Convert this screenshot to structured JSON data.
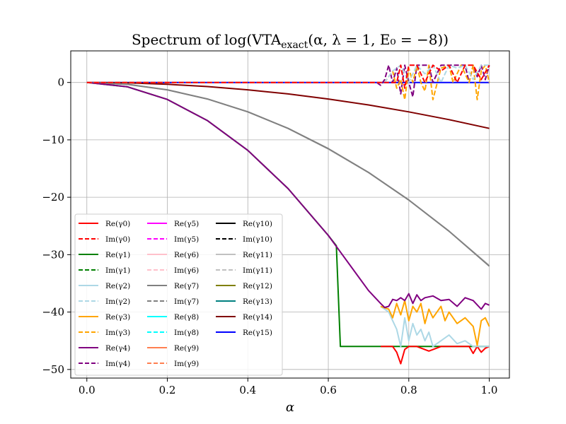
{
  "chart_data": {
    "type": "line",
    "title": "Spectrum of log(VTA_exact(α, λ = 1, E₀ = −8))",
    "title_parts": {
      "pre": "Spectrum of log(VTA",
      "sub": "exact",
      "post": "(α, λ = 1, E₀ = −8))"
    },
    "xlabel": "α",
    "ylabel": "",
    "xlim": [
      -0.04,
      1.05
    ],
    "ylim": [
      -51.5,
      5.5
    ],
    "xticks": [
      0.0,
      0.2,
      0.4,
      0.6,
      0.8,
      1.0
    ],
    "xtick_labels": [
      "0.0",
      "0.2",
      "0.4",
      "0.6",
      "0.8",
      "1.0"
    ],
    "yticks": [
      0,
      -10,
      -20,
      -30,
      -40,
      -50
    ],
    "ytick_labels": [
      "0",
      "−10",
      "−20",
      "−30",
      "−40",
      "−50"
    ],
    "grid": true,
    "legend_position": "lower-left",
    "legend": [
      {
        "label": "Re(γ0)",
        "color": "#ff0000",
        "dashed": false
      },
      {
        "label": "Im(γ0)",
        "color": "#ff0000",
        "dashed": true
      },
      {
        "label": "Re(γ1)",
        "color": "#008000",
        "dashed": false
      },
      {
        "label": "Im(γ1)",
        "color": "#008000",
        "dashed": true
      },
      {
        "label": "Re(γ2)",
        "color": "#add8e6",
        "dashed": false
      },
      {
        "label": "Im(γ2)",
        "color": "#add8e6",
        "dashed": true
      },
      {
        "label": "Re(γ3)",
        "color": "#ffa500",
        "dashed": false
      },
      {
        "label": "Im(γ3)",
        "color": "#ffa500",
        "dashed": true
      },
      {
        "label": "Re(γ4)",
        "color": "#800080",
        "dashed": false
      },
      {
        "label": "Im(γ4)",
        "color": "#800080",
        "dashed": true
      },
      {
        "label": "Re(γ5)",
        "color": "#ff00ff",
        "dashed": false
      },
      {
        "label": "Im(γ5)",
        "color": "#ff00ff",
        "dashed": true
      },
      {
        "label": "Re(γ6)",
        "color": "#ffc0cb",
        "dashed": false
      },
      {
        "label": "Im(γ6)",
        "color": "#ffc0cb",
        "dashed": true
      },
      {
        "label": "Re(γ7)",
        "color": "#808080",
        "dashed": false
      },
      {
        "label": "Im(γ7)",
        "color": "#808080",
        "dashed": true
      },
      {
        "label": "Re(γ8)",
        "color": "#00ffff",
        "dashed": false
      },
      {
        "label": "Im(γ8)",
        "color": "#00ffff",
        "dashed": true
      },
      {
        "label": "Re(γ9)",
        "color": "#ff7f50",
        "dashed": false
      },
      {
        "label": "Im(γ9)",
        "color": "#ff7f50",
        "dashed": true
      },
      {
        "label": "Re(γ10)",
        "color": "#000000",
        "dashed": false
      },
      {
        "label": "Im(γ10)",
        "color": "#000000",
        "dashed": true
      },
      {
        "label": "Re(γ11)",
        "color": "#c0c0c0",
        "dashed": false
      },
      {
        "label": "Im(γ11)",
        "color": "#c0c0c0",
        "dashed": true
      },
      {
        "label": "Re(γ12)",
        "color": "#808000",
        "dashed": false
      },
      {
        "label": "Re(γ13)",
        "color": "#008080",
        "dashed": false
      },
      {
        "label": "Re(γ14)",
        "color": "#800000",
        "dashed": false
      },
      {
        "label": "Re(γ15)",
        "color": "#0000ff",
        "dashed": false
      }
    ],
    "series": [
      {
        "name": "Re(γ15)",
        "color": "#0000ff",
        "dashed": false,
        "x": [
          0.0,
          0.2,
          0.4,
          0.6,
          0.8,
          1.0
        ],
        "y": [
          0,
          0,
          0,
          0,
          0,
          0
        ]
      },
      {
        "name": "Re(γ14)",
        "color": "#800000",
        "dashed": false,
        "x": [
          0.0,
          0.1,
          0.2,
          0.3,
          0.4,
          0.5,
          0.6,
          0.7,
          0.8,
          0.9,
          1.0
        ],
        "y": [
          0,
          -0.08,
          -0.32,
          -0.72,
          -1.28,
          -2.0,
          -2.88,
          -3.92,
          -5.12,
          -6.48,
          -8.0
        ]
      },
      {
        "name": "Re(γ11)",
        "color": "#c0c0c0",
        "dashed": false,
        "x": [
          0.0,
          0.1,
          0.2,
          0.3,
          0.4,
          0.5,
          0.6,
          0.7,
          0.8,
          0.9,
          1.0
        ],
        "y": [
          0,
          -0.33,
          -1.3,
          -2.9,
          -5.1,
          -8.0,
          -11.6,
          -15.7,
          -20.5,
          -25.9,
          -31.9
        ]
      },
      {
        "name": "Re(γ7)",
        "color": "#808080",
        "dashed": false,
        "x": [
          0.0,
          0.1,
          0.2,
          0.3,
          0.4,
          0.5,
          0.6,
          0.7,
          0.8,
          0.9,
          1.0
        ],
        "y": [
          0,
          -0.32,
          -1.28,
          -2.88,
          -5.12,
          -8.0,
          -11.52,
          -15.68,
          -20.48,
          -25.92,
          -32.0
        ]
      },
      {
        "name": "Re(γ1)",
        "color": "#008000",
        "dashed": false,
        "x": [
          0.0,
          0.1,
          0.2,
          0.3,
          0.4,
          0.5,
          0.6,
          0.62,
          0.63,
          0.7,
          0.8,
          0.9,
          1.0
        ],
        "y": [
          0,
          -0.74,
          -2.96,
          -6.66,
          -11.84,
          -18.5,
          -26.64,
          -28.45,
          -46.0,
          -46.0,
          -46.0,
          -46.0,
          -46.0
        ]
      },
      {
        "name": "Re(γ0)",
        "color": "#ff0000",
        "dashed": false,
        "x": [
          0.73,
          0.75,
          0.76,
          0.77,
          0.78,
          0.79,
          0.8,
          0.82,
          0.85,
          0.88,
          0.9,
          0.95,
          0.96,
          0.97,
          0.98,
          0.99,
          1.0
        ],
        "y": [
          -46.0,
          -46.0,
          -46.0,
          -47.0,
          -49.0,
          -46.5,
          -46.0,
          -46.0,
          -46.8,
          -46.0,
          -46.0,
          -46.0,
          -47.2,
          -46.0,
          -47.0,
          -46.3,
          -46.0
        ]
      },
      {
        "name": "Re(γ2)",
        "color": "#add8e6",
        "dashed": false,
        "x": [
          0.73,
          0.75,
          0.76,
          0.77,
          0.78,
          0.79,
          0.8,
          0.81,
          0.82,
          0.83,
          0.84,
          0.85,
          0.86,
          0.88,
          0.9,
          0.92,
          0.94,
          0.96,
          0.98,
          1.0
        ],
        "y": [
          -39.0,
          -40.0,
          -41.5,
          -43.0,
          -46.0,
          -41.0,
          -45.0,
          -42.0,
          -44.0,
          -43.0,
          -45.0,
          -43.5,
          -46.0,
          -45.0,
          -44.0,
          -45.5,
          -45.0,
          -46.0,
          -46.0,
          -46.0
        ]
      },
      {
        "name": "Re(γ3)",
        "color": "#ffa500",
        "dashed": false,
        "x": [
          0.73,
          0.75,
          0.76,
          0.77,
          0.78,
          0.79,
          0.8,
          0.81,
          0.82,
          0.83,
          0.84,
          0.85,
          0.86,
          0.87,
          0.88,
          0.89,
          0.9,
          0.92,
          0.94,
          0.96,
          0.97,
          0.98,
          0.99,
          1.0
        ],
        "y": [
          -39.0,
          -39.5,
          -41.0,
          -38.5,
          -40.5,
          -38.0,
          -41.5,
          -39.0,
          -40.0,
          -38.5,
          -42.0,
          -39.5,
          -41.0,
          -40.0,
          -39.0,
          -41.5,
          -40.0,
          -42.0,
          -41.0,
          -42.5,
          -45.8,
          -41.5,
          -41.0,
          -42.5
        ]
      },
      {
        "name": "Re(γ4)",
        "color": "#800080",
        "dashed": false,
        "x": [
          0.0,
          0.1,
          0.2,
          0.3,
          0.4,
          0.5,
          0.6,
          0.7,
          0.73,
          0.74,
          0.75,
          0.76,
          0.77,
          0.78,
          0.79,
          0.8,
          0.81,
          0.82,
          0.83,
          0.84,
          0.86,
          0.88,
          0.9,
          0.92,
          0.94,
          0.96,
          0.98,
          0.99,
          1.0
        ],
        "y": [
          0,
          -0.74,
          -2.96,
          -6.66,
          -11.84,
          -18.5,
          -26.64,
          -36.26,
          -38.5,
          -39.2,
          -39.0,
          -37.8,
          -38.0,
          -37.5,
          -38.0,
          -36.8,
          -38.5,
          -37.0,
          -38.0,
          -37.5,
          -37.2,
          -38.0,
          -37.8,
          -39.0,
          -37.5,
          -38.0,
          -39.5,
          -38.5,
          -38.8
        ]
      },
      {
        "name": "Im(γ4)",
        "color": "#800080",
        "dashed": true,
        "x": [
          0.0,
          0.72,
          0.73,
          0.74,
          0.75,
          0.76,
          0.77,
          0.78,
          0.79,
          0.8,
          0.81,
          0.82,
          0.85,
          0.86,
          0.88,
          0.9,
          0.92,
          0.94,
          0.95,
          0.96,
          0.97,
          0.98,
          0.99,
          1.0
        ],
        "y": [
          0,
          0,
          -0.5,
          0.5,
          3.0,
          0.0,
          2.5,
          -2.0,
          3.0,
          0.0,
          -2.5,
          3.0,
          3.0,
          0.0,
          3.0,
          3.0,
          3.0,
          3.0,
          0.0,
          3.0,
          1.0,
          3.0,
          0.5,
          3.0
        ]
      },
      {
        "name": "Im(γ3)",
        "color": "#ffa500",
        "dashed": true,
        "x": [
          0.0,
          0.74,
          0.76,
          0.77,
          0.78,
          0.79,
          0.8,
          0.81,
          0.82,
          0.83,
          0.84,
          0.85,
          0.86,
          0.88,
          0.9,
          0.91,
          0.93,
          0.95,
          0.96,
          0.97,
          0.98,
          0.99,
          1.0
        ],
        "y": [
          0,
          0,
          2.0,
          -1.0,
          0.5,
          -3.0,
          2.5,
          0.0,
          3.0,
          0.0,
          -1.5,
          3.0,
          -3.0,
          2.5,
          3.0,
          0.0,
          3.0,
          0.0,
          3.0,
          -3.0,
          2.0,
          3.0,
          0.0
        ]
      },
      {
        "name": "Im(γ2)",
        "color": "#add8e6",
        "dashed": true,
        "x": [
          0.0,
          0.74,
          0.76,
          0.78,
          0.8,
          0.82,
          0.84,
          0.86,
          0.88,
          0.9,
          0.92,
          0.94,
          0.96,
          0.98,
          1.0
        ],
        "y": [
          0,
          0,
          2.0,
          3.0,
          0.0,
          3.0,
          1.5,
          3.0,
          0.0,
          3.0,
          2.5,
          3.0,
          0.5,
          3.0,
          3.0
        ]
      },
      {
        "name": "Im(γ0)",
        "color": "#ff0000",
        "dashed": true,
        "x": [
          0.0,
          0.77,
          0.78,
          0.79,
          0.8,
          0.82,
          0.84,
          0.86,
          0.88,
          0.9,
          0.92,
          0.94,
          0.96,
          0.98,
          1.0
        ],
        "y": [
          0,
          0,
          3.0,
          -1.0,
          3.0,
          3.0,
          0.0,
          3.0,
          2.0,
          3.0,
          0.0,
          3.0,
          3.0,
          0.5,
          3.0
        ]
      }
    ]
  }
}
